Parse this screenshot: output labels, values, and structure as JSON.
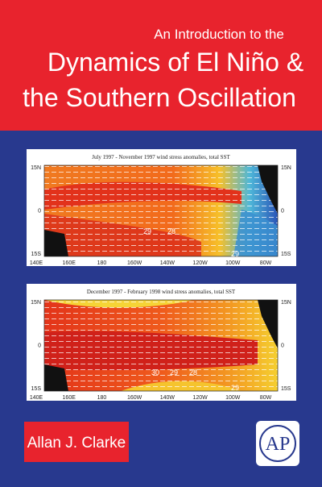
{
  "cover": {
    "title": {
      "line1": "An Introduction to the",
      "line2": "Dynamics of El Niño &",
      "line3": "the Southern Oscillation"
    },
    "figures": [
      {
        "caption": "July 1997 - November 1997 wind stress anomalies, total SST",
        "lat_labels": [
          "15N",
          "0",
          "15S"
        ],
        "lon_labels": [
          "140E",
          "160E",
          "180",
          "160W",
          "140W",
          "120W",
          "100W",
          "80W"
        ],
        "contour_labels": [
          "29",
          "28",
          "29"
        ]
      },
      {
        "caption": "December 1997 - February 1998 wind stress anomalies, total SST",
        "lat_labels": [
          "15N",
          "0",
          "15S"
        ],
        "lon_labels": [
          "140E",
          "160E",
          "180",
          "160W",
          "140W",
          "120W",
          "100W",
          "80W"
        ],
        "contour_labels": [
          "30",
          "29",
          "28",
          "29"
        ]
      }
    ],
    "author": "Allan J. Clarke",
    "publisher_logo": "AP"
  }
}
